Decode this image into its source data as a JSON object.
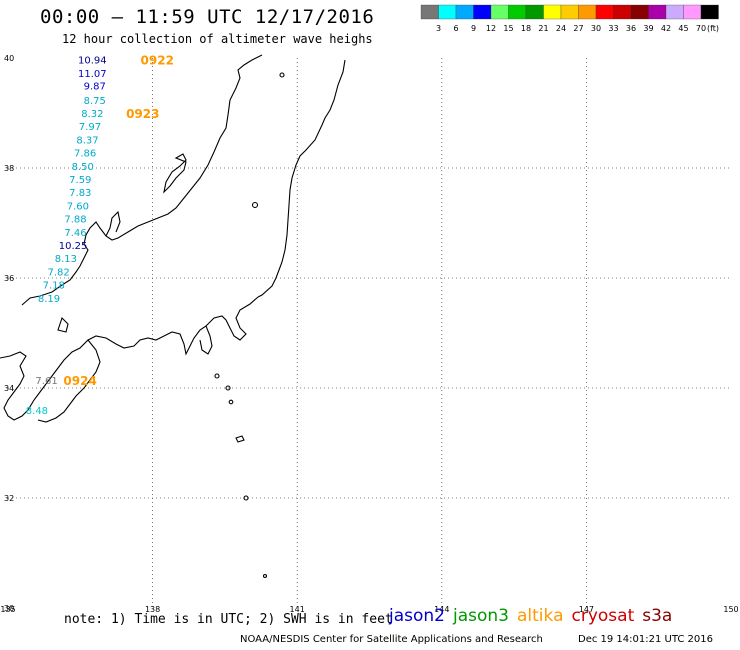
{
  "title": "00:00 – 11:59 UTC 12/17/2016",
  "subtitle": "12 hour collection of altimeter wave heighs",
  "note": "note: 1) Time is in UTC; 2) SWH is in feet",
  "credit": "NOAA/NESDIS Center for Satellite Applications and Research",
  "timestamp": "Dec 19 14:01:21 UTC 2016",
  "satellites": [
    {
      "label": "jason2",
      "color": "#0000cc"
    },
    {
      "label": "jason3",
      "color": "#009900"
    },
    {
      "label": "altika",
      "color": "#ff9900"
    },
    {
      "label": "cryosat",
      "color": "#cc0000"
    },
    {
      "label": "s3a",
      "color": "#880000"
    }
  ],
  "scale": {
    "unit": "(ft)",
    "ticks": [
      "3",
      "6",
      "9",
      "12",
      "15",
      "18",
      "21",
      "24",
      "27",
      "30",
      "33",
      "36",
      "39",
      "42",
      "45",
      "70"
    ],
    "colors": [
      "#777777",
      "#00ffff",
      "#00aaff",
      "#0000ff",
      "#66ff66",
      "#00cc00",
      "#009900",
      "#ffff00",
      "#ffcc00",
      "#ff9900",
      "#ff0000",
      "#cc0000",
      "#880000",
      "#aa00aa",
      "#ccaaff",
      "#ff99ff",
      "#000000"
    ]
  },
  "map": {
    "lon_min": 135,
    "lon_max": 150,
    "lat_min": 30,
    "lat_max": 40,
    "lon_ticks": [
      "135",
      "138",
      "141",
      "144",
      "147",
      "150"
    ],
    "lat_ticks": [
      "30",
      "32",
      "34",
      "36",
      "38",
      "40"
    ],
    "grid": "dotted"
  },
  "track_points": [
    {
      "lon": 136.75,
      "lat": 39.97,
      "value": "10.94",
      "color": "#000099"
    },
    {
      "lon": 136.75,
      "lat": 39.73,
      "value": "11.07",
      "color": "#0000cc"
    },
    {
      "lon": 136.8,
      "lat": 39.5,
      "value": "9.87",
      "color": "#0000cc"
    },
    {
      "lon": 136.8,
      "lat": 39.24,
      "value": "8.75",
      "color": "#00aacc"
    },
    {
      "lon": 136.75,
      "lat": 39.0,
      "value": "8.32",
      "color": "#00aacc"
    },
    {
      "lon": 136.7,
      "lat": 38.76,
      "value": "7.97",
      "color": "#00aacc"
    },
    {
      "lon": 136.65,
      "lat": 38.52,
      "value": "8.37",
      "color": "#00aacc"
    },
    {
      "lon": 136.6,
      "lat": 38.28,
      "value": "7.86",
      "color": "#00aacc"
    },
    {
      "lon": 136.55,
      "lat": 38.04,
      "value": "8.50",
      "color": "#00aacc"
    },
    {
      "lon": 136.5,
      "lat": 37.8,
      "value": "7.59",
      "color": "#00aacc"
    },
    {
      "lon": 136.5,
      "lat": 37.56,
      "value": "7.83",
      "color": "#00aacc"
    },
    {
      "lon": 136.45,
      "lat": 37.32,
      "value": "7.60",
      "color": "#00aacc"
    },
    {
      "lon": 136.4,
      "lat": 37.08,
      "value": "7.88",
      "color": "#00aacc"
    },
    {
      "lon": 136.4,
      "lat": 36.84,
      "value": "7.46",
      "color": "#00aacc"
    },
    {
      "lon": 136.35,
      "lat": 36.6,
      "value": "10.25",
      "color": "#000099"
    },
    {
      "lon": 136.2,
      "lat": 36.36,
      "value": "8.13",
      "color": "#00aacc"
    },
    {
      "lon": 136.05,
      "lat": 36.12,
      "value": "7.82",
      "color": "#00aacc"
    },
    {
      "lon": 135.95,
      "lat": 35.88,
      "value": "7.18",
      "color": "#00aacc"
    },
    {
      "lon": 135.85,
      "lat": 35.64,
      "value": "8.19",
      "color": "#00aacc"
    },
    {
      "lon": 135.8,
      "lat": 34.15,
      "value": "7.61",
      "color": "#777777"
    },
    {
      "lon": 135.6,
      "lat": 33.6,
      "value": "8.48",
      "color": "#00cccc"
    }
  ],
  "time_labels": [
    {
      "lon": 137.75,
      "lat": 39.97,
      "text": "0922",
      "color": "#ff9900"
    },
    {
      "lon": 137.45,
      "lat": 39.0,
      "text": "0923",
      "color": "#ff9900"
    },
    {
      "lon": 136.15,
      "lat": 34.15,
      "text": "0924",
      "color": "#ff9900"
    }
  ]
}
